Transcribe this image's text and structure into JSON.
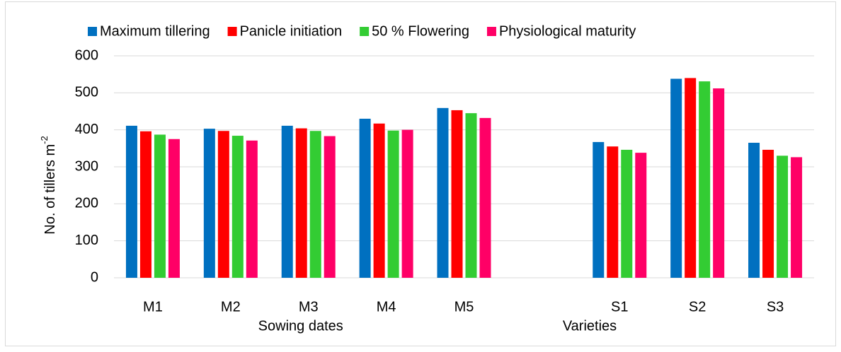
{
  "chart_data": {
    "type": "bar",
    "categories": [
      "M1",
      "M2",
      "M3",
      "M4",
      "M5",
      null,
      "S1",
      "S2",
      "S3"
    ],
    "series": [
      {
        "name": "Maximum tillering",
        "color": "#0070c0",
        "values": [
          411,
          403,
          411,
          430,
          459,
          null,
          367,
          538,
          365
        ]
      },
      {
        "name": "Panicle initiation",
        "color": "#ff0000",
        "values": [
          396,
          397,
          404,
          417,
          453,
          null,
          355,
          540,
          346
        ]
      },
      {
        "name": "50 % Flowering",
        "color": "#33cc33",
        "values": [
          387,
          384,
          397,
          398,
          445,
          null,
          346,
          531,
          330
        ]
      },
      {
        "name": "Physiological maturity",
        "color": "#ff0066",
        "values": [
          375,
          371,
          383,
          400,
          432,
          null,
          338,
          512,
          326
        ]
      }
    ],
    "ylabel": {
      "text": "No. of tillers m",
      "superscript": "-2"
    },
    "group_labels": [
      "Sowing dates",
      "Varieties"
    ],
    "ylim": [
      0,
      600
    ],
    "yticks": [
      0,
      100,
      200,
      300,
      400,
      500,
      600
    ],
    "grid": true,
    "legend": "top"
  }
}
